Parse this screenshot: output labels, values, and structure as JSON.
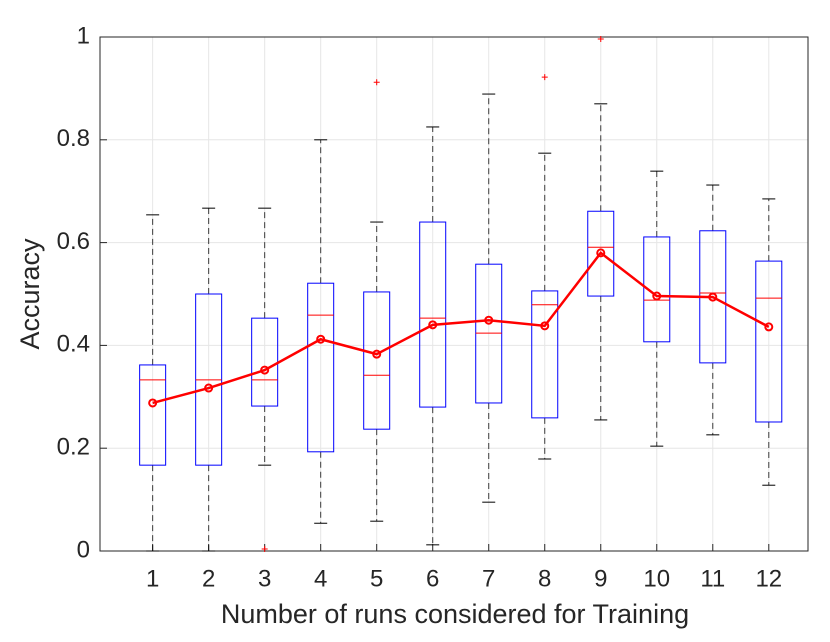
{
  "chart_data": {
    "type": "box",
    "xlabel": "Number of runs considered for Training",
    "ylabel": "Accuracy",
    "x": [
      1,
      2,
      3,
      4,
      5,
      6,
      7,
      8,
      9,
      10,
      11,
      12
    ],
    "xlim": [
      0.06,
      12.7
    ],
    "xticks": [
      1,
      2,
      3,
      4,
      5,
      6,
      7,
      8,
      9,
      10,
      11,
      12
    ],
    "ylim": [
      0,
      1
    ],
    "yticks": [
      0,
      0.2,
      0.4,
      0.6,
      0.8,
      1
    ],
    "grid": true,
    "box_color": "#0000ff",
    "median_color": "#ff0000",
    "whisker_color": "#000000",
    "boxes": [
      {
        "min": 0,
        "q1": 0.167,
        "median": 0.333,
        "q3": 0.362,
        "max": 0.654
      },
      {
        "min": 0,
        "q1": 0.167,
        "median": 0.333,
        "q3": 0.5,
        "max": 0.667
      },
      {
        "min": 0.167,
        "q1": 0.282,
        "median": 0.333,
        "q3": 0.453,
        "max": 0.667
      },
      {
        "min": 0.054,
        "q1": 0.193,
        "median": 0.459,
        "q3": 0.521,
        "max": 0.8
      },
      {
        "min": 0.058,
        "q1": 0.237,
        "median": 0.342,
        "q3": 0.504,
        "max": 0.64
      },
      {
        "min": 0.012,
        "q1": 0.28,
        "median": 0.453,
        "q3": 0.64,
        "max": 0.825
      },
      {
        "min": 0.095,
        "q1": 0.288,
        "median": 0.424,
        "q3": 0.558,
        "max": 0.889
      },
      {
        "min": 0.179,
        "q1": 0.259,
        "median": 0.479,
        "q3": 0.506,
        "max": 0.774
      },
      {
        "min": 0.255,
        "q1": 0.496,
        "median": 0.591,
        "q3": 0.661,
        "max": 0.87
      },
      {
        "min": 0.204,
        "q1": 0.407,
        "median": 0.488,
        "q3": 0.611,
        "max": 0.739
      },
      {
        "min": 0.226,
        "q1": 0.366,
        "median": 0.502,
        "q3": 0.623,
        "max": 0.712
      },
      {
        "min": 0.128,
        "q1": 0.251,
        "median": 0.492,
        "q3": 0.564,
        "max": 0.685
      }
    ],
    "outliers": {
      "color": "#ff0000",
      "x": [
        3,
        5,
        8,
        9
      ],
      "values": [
        0.004,
        0.912,
        0.922,
        0.996
      ]
    },
    "mean": {
      "color": "#ff0000",
      "values": [
        0.288,
        0.317,
        0.352,
        0.412,
        0.383,
        0.44,
        0.449,
        0.438,
        0.58,
        0.496,
        0.494,
        0.436
      ]
    }
  }
}
